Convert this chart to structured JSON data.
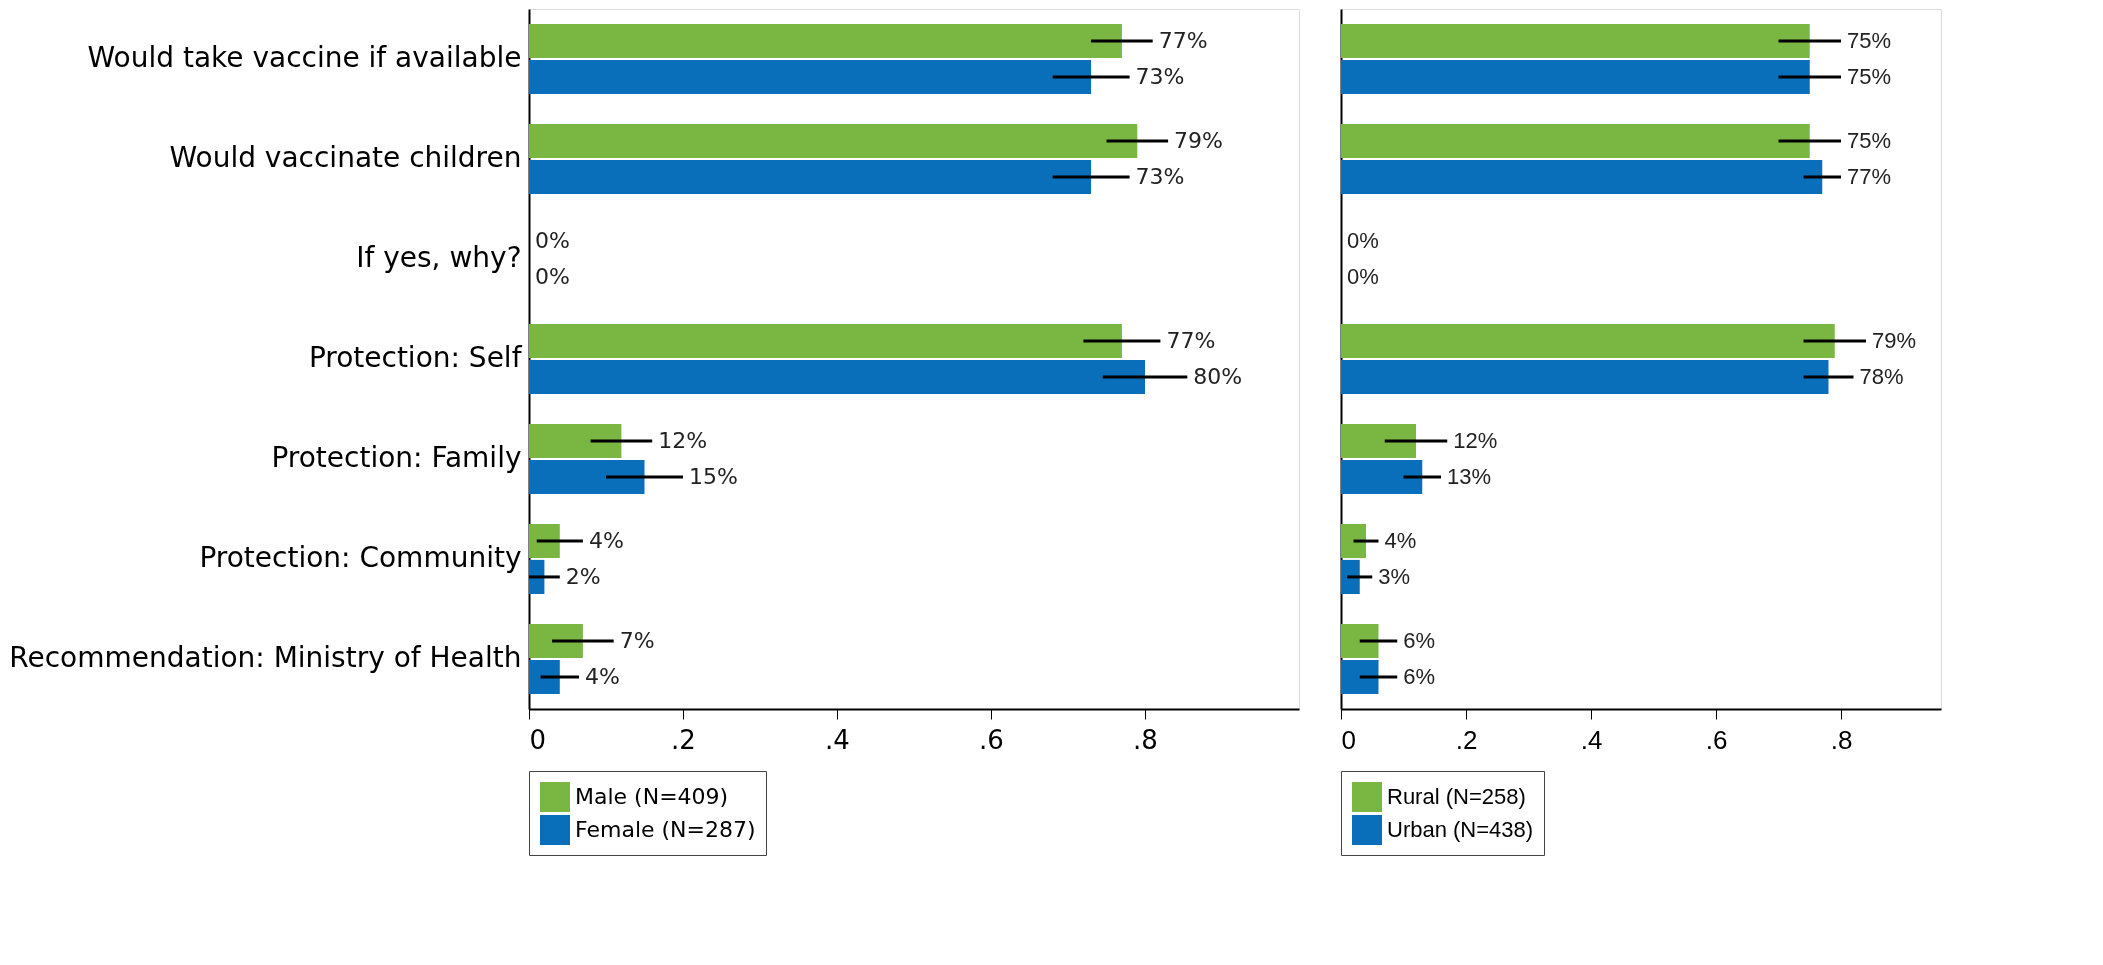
{
  "chart_data": [
    {
      "type": "bar",
      "orientation": "horizontal",
      "categories": [
        "Would take vaccine if available",
        "Would vaccinate children",
        "If yes, why?",
        "Protection: Self",
        "Protection: Family",
        "Protection: Community",
        "Recommendation: Ministry of Health"
      ],
      "series": [
        {
          "name": "Male (N=409)",
          "color": "#7ab642",
          "values": [
            0.77,
            0.79,
            0,
            0.77,
            0.12,
            0.04,
            0.07
          ],
          "errors": [
            0.04,
            0.04,
            null,
            0.05,
            0.04,
            0.03,
            0.04
          ],
          "value_labels": [
            "77%",
            "79%",
            "0%",
            "77%",
            "12%",
            "4%",
            "7%"
          ]
        },
        {
          "name": "Female (N=287)",
          "color": "#0a6fba",
          "values": [
            0.73,
            0.73,
            0,
            0.8,
            0.15,
            0.02,
            0.04
          ],
          "errors": [
            0.05,
            0.05,
            null,
            0.055,
            0.05,
            0.02,
            0.025
          ],
          "value_labels": [
            "73%",
            "73%",
            "0%",
            "80%",
            "15%",
            "2%",
            "4%"
          ]
        }
      ],
      "xlim": [
        0,
        1
      ],
      "xticks": [
        0,
        {
          "value": 0.2,
          "label": ".2"
        },
        {
          "value": 0.4,
          "label": ".4"
        },
        {
          "value": 0.6,
          "label": ".6"
        },
        {
          "value": 0.8,
          "label": ".8"
        }
      ],
      "grid": false,
      "legend": "bottom"
    },
    {
      "type": "bar",
      "orientation": "horizontal",
      "categories": [
        null,
        null,
        null,
        null,
        null,
        null,
        null
      ],
      "series": [
        {
          "name": "Rural (N=258)",
          "color": "#7ab642",
          "values": [
            0.75,
            0.75,
            0,
            0.79,
            0.12,
            0.04,
            0.06
          ],
          "errors": [
            0.05,
            0.05,
            null,
            0.05,
            0.05,
            0.02,
            0.03
          ],
          "value_labels": [
            "75%",
            "75%",
            "0%",
            "79%",
            "12%",
            "4%",
            "6%"
          ]
        },
        {
          "name": "Urban (N=438)",
          "color": "#0a6fba",
          "values": [
            0.75,
            0.77,
            0,
            0.78,
            0.13,
            0.03,
            0.06
          ],
          "errors": [
            0.05,
            0.03,
            null,
            0.04,
            0.03,
            0.02,
            0.03
          ],
          "value_labels": [
            "75%",
            "77%",
            "0%",
            "78%",
            "13%",
            "3%",
            "6%"
          ]
        }
      ],
      "xlim": [
        0,
        0.96
      ],
      "xticks": [
        0,
        {
          "value": 0.2,
          "label": ".2"
        },
        {
          "value": 0.4,
          "label": ".4"
        },
        {
          "value": 0.6,
          "label": ".6"
        },
        {
          "value": 0.8,
          "label": ".8"
        }
      ],
      "grid": false,
      "legend": "bottom",
      "tick_labels": "x"
    }
  ]
}
